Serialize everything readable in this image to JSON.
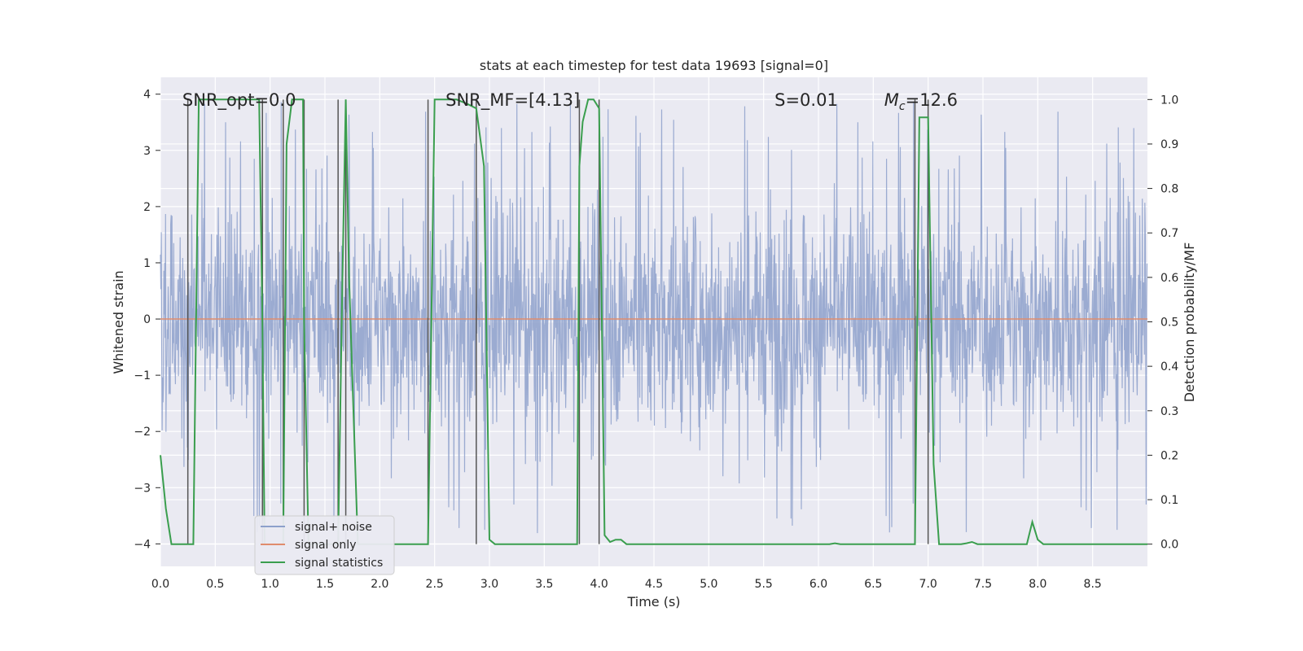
{
  "chart_data": {
    "type": "line",
    "title": "stats at each timestep for test data 19693 [signal=0]",
    "xlabel": "Time (s)",
    "ylabel": "Whitened strain",
    "y2label": "Detection probability/MF",
    "xlim": [
      0.0,
      9.0
    ],
    "ylim": [
      -4.4,
      4.3
    ],
    "y2lim": [
      -0.05,
      1.05
    ],
    "xticks": [
      0.0,
      0.5,
      1.0,
      1.5,
      2.0,
      2.5,
      3.0,
      3.5,
      4.0,
      4.5,
      5.0,
      5.5,
      6.0,
      6.5,
      7.0,
      7.5,
      8.0,
      8.5
    ],
    "xtick_labels": [
      "0.0",
      "0.5",
      "1.0",
      "1.5",
      "2.0",
      "2.5",
      "3.0",
      "3.5",
      "4.0",
      "4.5",
      "5.0",
      "5.5",
      "6.0",
      "6.5",
      "7.0",
      "7.5",
      "8.0",
      "8.5"
    ],
    "yticks": [
      4,
      3,
      2,
      1,
      0,
      -1,
      -2,
      -3,
      -4
    ],
    "ytick_labels": [
      "4",
      "3",
      "2",
      "1",
      "0",
      "−1",
      "−2",
      "−3",
      "−4"
    ],
    "y2ticks": [
      1.0,
      0.9,
      0.8,
      0.7,
      0.6,
      0.5,
      0.4,
      0.3,
      0.2,
      0.1,
      0.0
    ],
    "y2tick_labels": [
      "1.0",
      "0.9",
      "0.8",
      "0.7",
      "0.6",
      "0.5",
      "0.4",
      "0.3",
      "0.2",
      "0.1",
      "0.0"
    ],
    "annotations": [
      {
        "text": "SNR_opt=0.0",
        "x": 0.2,
        "y": 3.85
      },
      {
        "text": "SNR_MF=[4.13]",
        "x": 2.6,
        "y": 3.85
      },
      {
        "text": "S=0.01",
        "x": 5.6,
        "y": 3.85
      },
      {
        "text": "M_c=12.6",
        "x": 6.6,
        "y": 3.85
      }
    ],
    "legend": {
      "position": "lower-left",
      "entries": [
        {
          "label": "signal+ noise",
          "color": "#8da0cb"
        },
        {
          "label": "signal only",
          "color": "#e08c6d"
        },
        {
          "label": "signal statistics",
          "color": "#3a9e4e"
        }
      ]
    },
    "vertical_lines_x": [
      0.25,
      0.93,
      1.12,
      1.31,
      1.62,
      1.69,
      2.44,
      2.88,
      3.82,
      4.0,
      6.88,
      7.0
    ],
    "noise_series": {
      "name": "signal+ noise",
      "color": "#8da0cb",
      "description_free_note": "dense whitened noise, amplitude mostly within -2..2.5 with spikes to about ±3.9",
      "sample_rate_hz": 256,
      "typical_amplitude": 1.8,
      "peak_amplitude": 3.9
    },
    "signal_series": {
      "name": "signal only",
      "color": "#e08c6d",
      "values_constant": 0.0
    },
    "stat_series": {
      "name": "signal statistics",
      "color": "#3a9e4e",
      "x": [
        0.0,
        0.05,
        0.1,
        0.15,
        0.2,
        0.25,
        0.3,
        0.35,
        0.4,
        0.5,
        0.6,
        0.7,
        0.8,
        0.9,
        0.93,
        0.95,
        1.0,
        1.05,
        1.1,
        1.12,
        1.15,
        1.2,
        1.3,
        1.31,
        1.35,
        1.45,
        1.55,
        1.62,
        1.66,
        1.69,
        1.72,
        1.8,
        1.9,
        2.0,
        2.1,
        2.2,
        2.3,
        2.4,
        2.44,
        2.5,
        2.6,
        2.7,
        2.8,
        2.88,
        2.95,
        3.0,
        3.05,
        3.1,
        3.2,
        3.3,
        3.4,
        3.5,
        3.6,
        3.7,
        3.75,
        3.8,
        3.82,
        3.85,
        3.9,
        3.95,
        4.0,
        4.05,
        4.1,
        4.15,
        4.2,
        4.25,
        4.3,
        4.35,
        4.4,
        4.5,
        5.0,
        5.5,
        6.0,
        6.1,
        6.15,
        6.2,
        6.3,
        6.5,
        6.8,
        6.85,
        6.88,
        6.92,
        6.95,
        7.0,
        7.05,
        7.1,
        7.15,
        7.3,
        7.35,
        7.4,
        7.45,
        7.5,
        7.9,
        7.95,
        8.0,
        8.05,
        8.1,
        8.15,
        8.5,
        9.0
      ],
      "y": [
        0.2,
        0.08,
        0.0,
        0.0,
        0.0,
        0.0,
        0.0,
        1.0,
        1.0,
        1.0,
        1.0,
        1.0,
        1.0,
        1.0,
        0.5,
        0.0,
        0.0,
        0.0,
        0.0,
        0.0,
        0.9,
        1.0,
        1.0,
        0.5,
        0.0,
        0.0,
        0.0,
        0.0,
        0.6,
        1.0,
        0.6,
        0.0,
        0.0,
        0.0,
        0.0,
        0.0,
        0.0,
        0.0,
        0.0,
        1.0,
        1.0,
        1.0,
        0.99,
        0.98,
        0.85,
        0.01,
        0.0,
        0.0,
        0.0,
        0.0,
        0.0,
        0.0,
        0.0,
        0.0,
        0.0,
        0.0,
        0.85,
        0.95,
        1.0,
        1.0,
        0.98,
        0.02,
        0.005,
        0.01,
        0.01,
        0.0,
        0.0,
        0.0,
        0.0,
        0.0,
        0.0,
        0.0,
        0.0,
        0.0,
        0.002,
        0.0,
        0.0,
        0.0,
        0.0,
        0.0,
        0.0,
        0.96,
        0.96,
        0.96,
        0.18,
        0.0,
        0.0,
        0.0,
        0.002,
        0.005,
        0.0,
        0.0,
        0.0,
        0.05,
        0.01,
        0.0,
        0.0,
        0.0,
        0.0,
        0.0
      ]
    }
  }
}
